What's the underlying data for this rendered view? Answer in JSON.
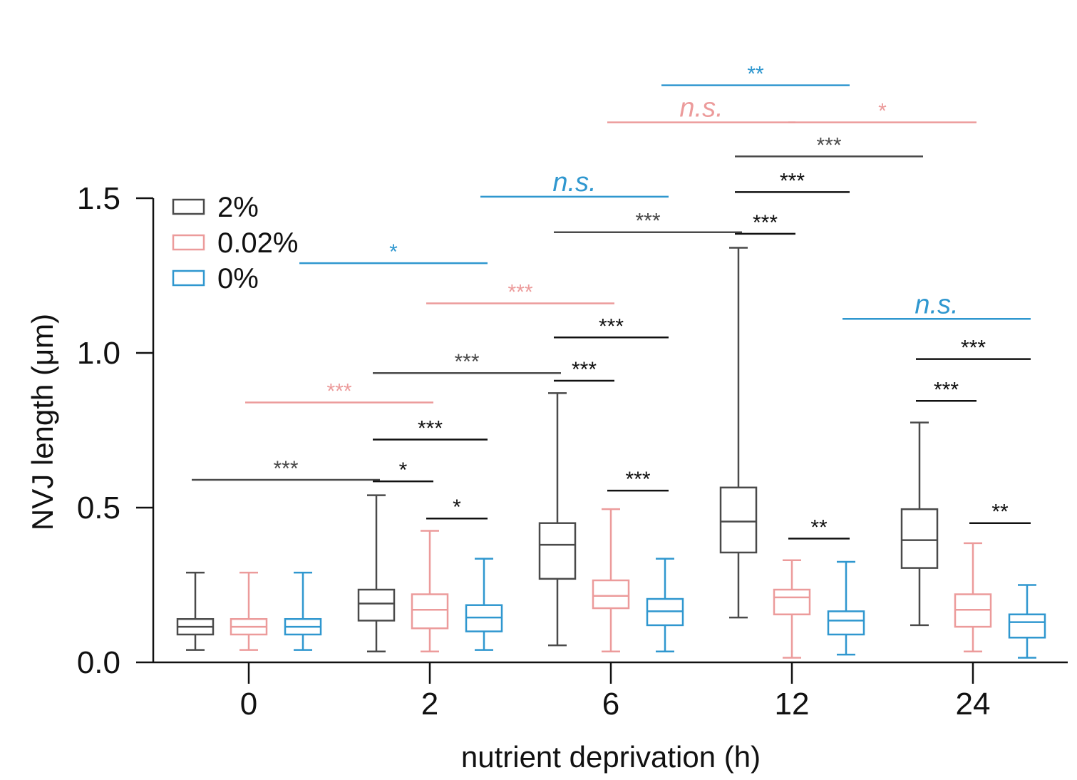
{
  "chart_data": {
    "type": "box",
    "xlabel": "nutrient deprivation (h)",
    "ylabel": "NVJ length (μm)",
    "ylim": [
      0,
      1.5
    ],
    "yticks": [
      "0.0",
      "0.5",
      "1.0",
      "1.5"
    ],
    "categories": [
      "0",
      "2",
      "6",
      "12",
      "24"
    ],
    "legend_position": "top-left",
    "series": [
      {
        "name": "2%",
        "color": "#4a4a4a",
        "boxes": [
          {
            "min": 0.04,
            "q1": 0.09,
            "median": 0.115,
            "q3": 0.14,
            "max": 0.29
          },
          {
            "min": 0.035,
            "q1": 0.135,
            "median": 0.19,
            "q3": 0.235,
            "max": 0.54
          },
          {
            "min": 0.055,
            "q1": 0.27,
            "median": 0.38,
            "q3": 0.45,
            "max": 0.87
          },
          {
            "min": 0.145,
            "q1": 0.355,
            "median": 0.455,
            "q3": 0.565,
            "max": 1.34
          },
          {
            "min": 0.12,
            "q1": 0.305,
            "median": 0.395,
            "q3": 0.495,
            "max": 0.775
          }
        ]
      },
      {
        "name": "0.02%",
        "color": "#ec9b9b",
        "boxes": [
          {
            "min": 0.04,
            "q1": 0.09,
            "median": 0.115,
            "q3": 0.14,
            "max": 0.29
          },
          {
            "min": 0.035,
            "q1": 0.11,
            "median": 0.17,
            "q3": 0.22,
            "max": 0.425
          },
          {
            "min": 0.035,
            "q1": 0.175,
            "median": 0.215,
            "q3": 0.265,
            "max": 0.495
          },
          {
            "min": 0.015,
            "q1": 0.155,
            "median": 0.21,
            "q3": 0.235,
            "max": 0.33
          },
          {
            "min": 0.035,
            "q1": 0.115,
            "median": 0.17,
            "q3": 0.22,
            "max": 0.385
          }
        ]
      },
      {
        "name": "0%",
        "color": "#2f97cf",
        "boxes": [
          {
            "min": 0.04,
            "q1": 0.09,
            "median": 0.115,
            "q3": 0.14,
            "max": 0.29
          },
          {
            "min": 0.04,
            "q1": 0.1,
            "median": 0.145,
            "q3": 0.185,
            "max": 0.335
          },
          {
            "min": 0.035,
            "q1": 0.12,
            "median": 0.165,
            "q3": 0.205,
            "max": 0.335
          },
          {
            "min": 0.025,
            "q1": 0.09,
            "median": 0.135,
            "q3": 0.165,
            "max": 0.325
          },
          {
            "min": 0.015,
            "q1": 0.08,
            "median": 0.13,
            "q3": 0.155,
            "max": 0.25
          }
        ]
      }
    ],
    "significance": [
      {
        "from": [
          "0",
          "2%"
        ],
        "to": [
          "2",
          "2%"
        ],
        "label": "***",
        "y": 0.59,
        "color": "#4a4a4a"
      },
      {
        "from": [
          "2",
          "2%"
        ],
        "to": [
          "2",
          "0.02%"
        ],
        "label": "*",
        "y": 0.585,
        "color": "#111111"
      },
      {
        "from": [
          "2",
          "0.02%"
        ],
        "to": [
          "2",
          "0%"
        ],
        "label": "*",
        "y": 0.465,
        "color": "#111111"
      },
      {
        "from": [
          "2",
          "2%"
        ],
        "to": [
          "2",
          "0%"
        ],
        "label": "***",
        "y": 0.72,
        "color": "#111111"
      },
      {
        "from": [
          "0",
          "0.02%"
        ],
        "to": [
          "2",
          "0.02%"
        ],
        "label": "***",
        "y": 0.84,
        "color": "#ec9b9b"
      },
      {
        "from": [
          "2",
          "2%"
        ],
        "to": [
          "6",
          "2%"
        ],
        "label": "***",
        "y": 0.935,
        "color": "#4a4a4a"
      },
      {
        "from": [
          "2",
          "0.02%"
        ],
        "to": [
          "6",
          "0.02%"
        ],
        "label": "***",
        "y": 1.16,
        "color": "#ec9b9b"
      },
      {
        "from": [
          "0",
          "0%"
        ],
        "to": [
          "2",
          "0%"
        ],
        "label": "*",
        "y": 1.29,
        "color": "#2f97cf"
      },
      {
        "from": [
          "6",
          "2%"
        ],
        "to": [
          "6",
          "0.02%"
        ],
        "label": "***",
        "y": 0.91,
        "color": "#111111"
      },
      {
        "from": [
          "6",
          "2%"
        ],
        "to": [
          "6",
          "0%"
        ],
        "label": "***",
        "y": 1.05,
        "color": "#111111"
      },
      {
        "from": [
          "6",
          "0.02%"
        ],
        "to": [
          "6",
          "0%"
        ],
        "label": "***",
        "y": 0.555,
        "color": "#111111"
      },
      {
        "from": [
          "6",
          "2%"
        ],
        "to": [
          "12",
          "2%"
        ],
        "label": "***",
        "y": 1.39,
        "color": "#4a4a4a"
      },
      {
        "from": [
          "2",
          "0%"
        ],
        "to": [
          "6",
          "0%"
        ],
        "label": "n.s.",
        "y": 1.505,
        "color": "#2f97cf"
      },
      {
        "from": [
          "12",
          "2%"
        ],
        "to": [
          "12",
          "0.02%"
        ],
        "label": "***",
        "y": 1.385,
        "color": "#111111"
      },
      {
        "from": [
          "12",
          "2%"
        ],
        "to": [
          "12",
          "0%"
        ],
        "label": "***",
        "y": 1.52,
        "color": "#111111"
      },
      {
        "from": [
          "12",
          "2%"
        ],
        "to": [
          "24",
          "2%"
        ],
        "label": "***",
        "y": 1.635,
        "color": "#4a4a4a"
      },
      {
        "from": [
          "6",
          "0.02%"
        ],
        "to": [
          "12",
          "0.02%"
        ],
        "label": "n.s.",
        "y": 1.745,
        "color": "#ec9b9b"
      },
      {
        "from": [
          "12",
          "0.02%"
        ],
        "to": [
          "24",
          "0.02%"
        ],
        "label": "*",
        "y": 1.745,
        "color": "#ec9b9b"
      },
      {
        "from": [
          "6",
          "0%"
        ],
        "to": [
          "12",
          "0%"
        ],
        "label": "**",
        "y": 1.865,
        "color": "#2f97cf"
      },
      {
        "from": [
          "12",
          "0.02%"
        ],
        "to": [
          "12",
          "0%"
        ],
        "label": "**",
        "y": 0.4,
        "color": "#111111"
      },
      {
        "from": [
          "24",
          "2%"
        ],
        "to": [
          "24",
          "0.02%"
        ],
        "label": "***",
        "y": 0.845,
        "color": "#111111"
      },
      {
        "from": [
          "24",
          "2%"
        ],
        "to": [
          "24",
          "0%"
        ],
        "label": "***",
        "y": 0.98,
        "color": "#111111"
      },
      {
        "from": [
          "24",
          "0.02%"
        ],
        "to": [
          "24",
          "0%"
        ],
        "label": "**",
        "y": 0.45,
        "color": "#111111"
      },
      {
        "from": [
          "12",
          "0%"
        ],
        "to": [
          "24",
          "0%"
        ],
        "label": "n.s.",
        "y": 1.11,
        "color": "#2f97cf"
      }
    ]
  }
}
